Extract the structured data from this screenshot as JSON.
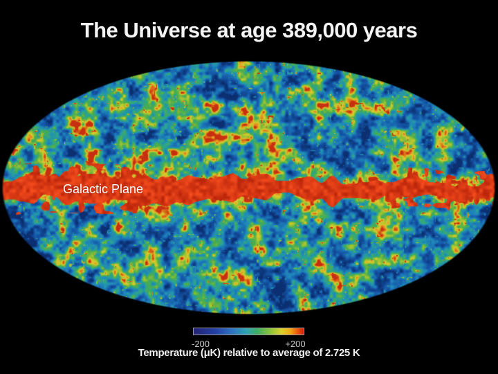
{
  "page": {
    "background": "#000000"
  },
  "title": {
    "text": "The Universe at age 389,000 years",
    "color": "#f5f5f5"
  },
  "map": {
    "galactic_plane_label": "Galactic Plane"
  },
  "colorbar": {
    "min_label": "-200",
    "max_label": "+200",
    "caption": "Temperature (μK) relative to average of 2.725 K",
    "tick_color": "#c8c8c8",
    "border_color": "#9a9a9a"
  },
  "chart_data": {
    "type": "heatmap",
    "title": "The Universe at age 389,000 years",
    "projection": "mollweide-ellipse",
    "annotation": "Galactic Plane",
    "value_axis_label": "Temperature (μK) relative to average of 2.725 K",
    "value_range_uK": [
      -200,
      200
    ],
    "tick_labels": [
      "-200",
      "+200"
    ],
    "average_temperature_K": "2.725",
    "background": "#000000",
    "band_color": "#c22f10",
    "colormap_stops": [
      {
        "t": 0.0,
        "c": "#0b2f70"
      },
      {
        "t": 0.22,
        "c": "#1556a8"
      },
      {
        "t": 0.42,
        "c": "#1f88bb"
      },
      {
        "t": 0.55,
        "c": "#2aa391"
      },
      {
        "t": 0.66,
        "c": "#4bad4d"
      },
      {
        "t": 0.76,
        "c": "#97c335"
      },
      {
        "t": 0.84,
        "c": "#dcca2c"
      },
      {
        "t": 0.91,
        "c": "#e0821e"
      },
      {
        "t": 1.0,
        "c": "#c62f10"
      }
    ],
    "colorbar_stops": [
      {
        "t": 0.0,
        "c": "#232370"
      },
      {
        "t": 0.2,
        "c": "#2340a6"
      },
      {
        "t": 0.35,
        "c": "#2f74c0"
      },
      {
        "t": 0.48,
        "c": "#2fa3b2"
      },
      {
        "t": 0.58,
        "c": "#3fae62"
      },
      {
        "t": 0.7,
        "c": "#8ec43a"
      },
      {
        "t": 0.8,
        "c": "#ddd02b"
      },
      {
        "t": 0.88,
        "c": "#f2a816"
      },
      {
        "t": 0.94,
        "c": "#ec5c0d"
      },
      {
        "t": 1.0,
        "c": "#d41e06"
      }
    ]
  }
}
